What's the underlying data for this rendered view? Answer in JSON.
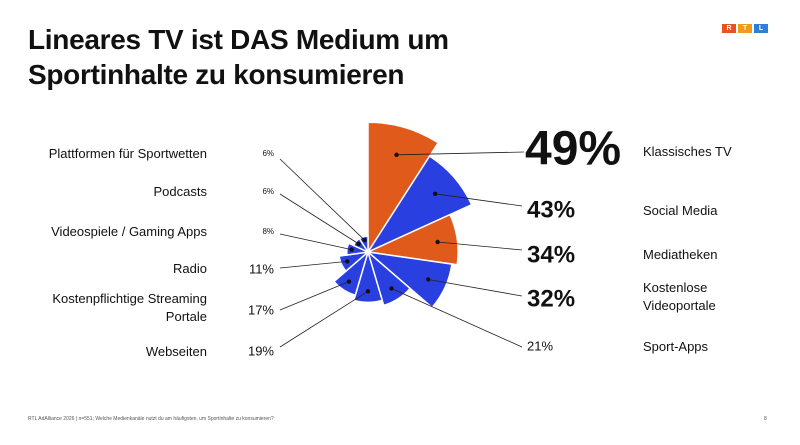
{
  "title_line1": "Lineares TV ist DAS Medium um",
  "title_line2": "Sportinhalte zu konsumieren",
  "logo": {
    "letters": [
      "R",
      "T",
      "L"
    ],
    "colors": [
      "#e8521e",
      "#f39c12",
      "#2f7fd8"
    ]
  },
  "colors": {
    "orange": "#e05a1c",
    "blue": "#2a3fe0",
    "text": "#111111",
    "line": "#222222"
  },
  "chart_data": {
    "type": "polar-area",
    "unit": "%",
    "slices": [
      {
        "label": "Klassisches TV",
        "value": 49,
        "value_label": "49%",
        "color": "orange"
      },
      {
        "label": "Social Media",
        "value": 43,
        "value_label": "43%",
        "color": "blue"
      },
      {
        "label": "Mediatheken",
        "value": 34,
        "value_label": "34%",
        "color": "orange"
      },
      {
        "label": "Kostenlose Videoportale",
        "label_lines": [
          "Kostenlose",
          "Videoportale"
        ],
        "value": 32,
        "value_label": "32%",
        "color": "blue"
      },
      {
        "label": "Sport-Apps",
        "value": 21,
        "value_label": "21%",
        "color": "blue"
      },
      {
        "label": "Webseiten",
        "value": 19,
        "value_label": "19%",
        "color": "blue"
      },
      {
        "label": "Kostenpflichtige Streaming Portale",
        "label_lines": [
          "Kostenpflichtige Streaming",
          "Portale"
        ],
        "value": 17,
        "value_label": "17%",
        "color": "blue"
      },
      {
        "label": "Radio",
        "value": 11,
        "value_label": "11%",
        "color": "blue"
      },
      {
        "label": "Videospiele / Gaming Apps",
        "value": 8,
        "value_label": "8%",
        "color": "blue"
      },
      {
        "label": "Podcasts",
        "value": 6,
        "value_label": "6%",
        "color": "blue"
      },
      {
        "label": "Plattformen für Sportwetten",
        "value": 6,
        "value_label": "6%",
        "color": "blue"
      }
    ]
  },
  "footer": "RTL AdAlliance 2026 | n=551; Welche Medienkanäle nutzt du am häufigsten, um Sportinhalte zu konsumieren?",
  "page_number": "8"
}
